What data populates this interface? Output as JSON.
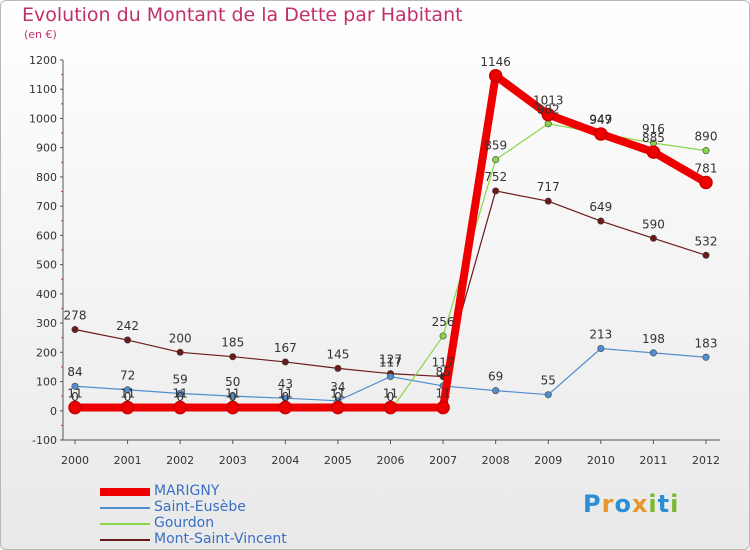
{
  "title": "Evolution du Montant de la Dette par Habitant",
  "unit_label": "(en €)",
  "logo": {
    "text": "Proxiti",
    "colors": [
      "#2a8fd6",
      "#e8952c",
      "#2a8fd6",
      "#e8952c",
      "#7cb82f",
      "#2a8fd6",
      "#7cb82f"
    ]
  },
  "chart_data": {
    "type": "line",
    "title": "Evolution du Montant de la Dette par Habitant",
    "ylabel": "(en €)",
    "xlabel": "",
    "x": [
      "2000",
      "2001",
      "2002",
      "2003",
      "2004",
      "2005",
      "2006",
      "2007",
      "2008",
      "2009",
      "2010",
      "2011",
      "2012"
    ],
    "ylim": [
      -100,
      1200
    ],
    "yticks": [
      -100,
      0,
      100,
      200,
      300,
      400,
      500,
      600,
      700,
      800,
      900,
      1000,
      1100,
      1200
    ],
    "grid": false,
    "legend_position": "bottom-left",
    "series": [
      {
        "name": "Mont-Saint-Vincent",
        "color": "#6b1a1a",
        "width": 1.2,
        "values": [
          278,
          242,
          200,
          185,
          167,
          145,
          127,
          117,
          752,
          717,
          649,
          590,
          532
        ],
        "labels": [
          "278",
          "242",
          "200",
          "185",
          "167",
          "145",
          "127",
          "117",
          "752",
          "717",
          "649",
          "590",
          "532"
        ]
      },
      {
        "name": "Saint-Eusèbe",
        "color": "#4f8fd0",
        "width": 1.2,
        "values": [
          84,
          72,
          59,
          50,
          43,
          34,
          117,
          85,
          69,
          55,
          213,
          198,
          183
        ],
        "labels": [
          "84",
          "72",
          "59",
          "50",
          "43",
          "34",
          "117",
          "85",
          "69",
          "55",
          "213",
          "198",
          "183"
        ]
      },
      {
        "name": "Gourdon",
        "color": "#8ad648",
        "width": 1.2,
        "values": [
          0,
          0,
          0,
          0,
          0,
          0,
          0,
          256,
          859,
          982,
          949,
          916,
          890
        ],
        "labels": [
          "0",
          "0",
          "0",
          "0",
          "0",
          "0",
          "0",
          "256",
          "859",
          "982",
          "949",
          "916",
          "890"
        ]
      },
      {
        "name": "MARIGNY",
        "color": "#ee0000",
        "width": 8,
        "values": [
          11,
          11,
          11,
          11,
          11,
          11,
          11,
          11,
          1146,
          1013,
          947,
          885,
          781
        ],
        "labels": [
          "11",
          "11",
          "11",
          "11",
          "11",
          "11",
          "11",
          "11",
          "1146",
          "1013",
          "947",
          "885",
          "781"
        ]
      }
    ],
    "legend_order": [
      "MARIGNY",
      "Saint-Eusèbe",
      "Gourdon",
      "Mont-Saint-Vincent"
    ]
  }
}
